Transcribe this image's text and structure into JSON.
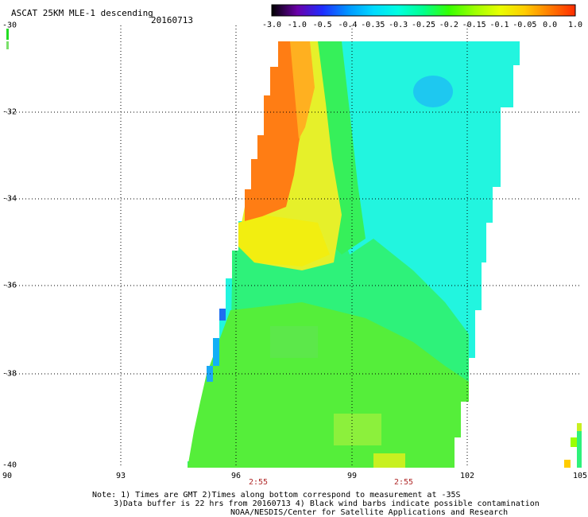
{
  "header": {
    "title": "ASCAT 25KM MLE-1 descending",
    "date": "20160713"
  },
  "colorbar": {
    "labels": [
      "-3.0",
      "-1.0",
      "-0.5",
      "-0.4",
      "-0.35",
      "-0.3",
      "-0.25",
      "-0.2",
      "-0.15",
      "-0.1",
      "-0.05",
      "0.0",
      "1.0"
    ],
    "colors": [
      "#000000",
      "#6a00a8",
      "#1f2cff",
      "#0094ff",
      "#00d9ff",
      "#00ffe0",
      "#00ff8c",
      "#36ff00",
      "#9bff00",
      "#e8ff00",
      "#ffcc00",
      "#ff7a00",
      "#ff2a00"
    ]
  },
  "axes": {
    "lat_labels": [
      "-30",
      "-32",
      "-34",
      "-36",
      "-38",
      "-40"
    ],
    "lon_labels": [
      "90",
      "93",
      "96",
      "99",
      "102",
      "105"
    ]
  },
  "times": [
    "2:55",
    "2:55"
  ],
  "notes": {
    "line1": "Note: 1) Times are GMT 2)Times along bottom correspond to measurement at -35S",
    "line2": "3)Data buffer is 22 hrs from 20160713 4) Black wind barbs indicate possible contamination",
    "line3": "NOAA/NESDIS/Center for Satellite Applications and Research"
  }
}
